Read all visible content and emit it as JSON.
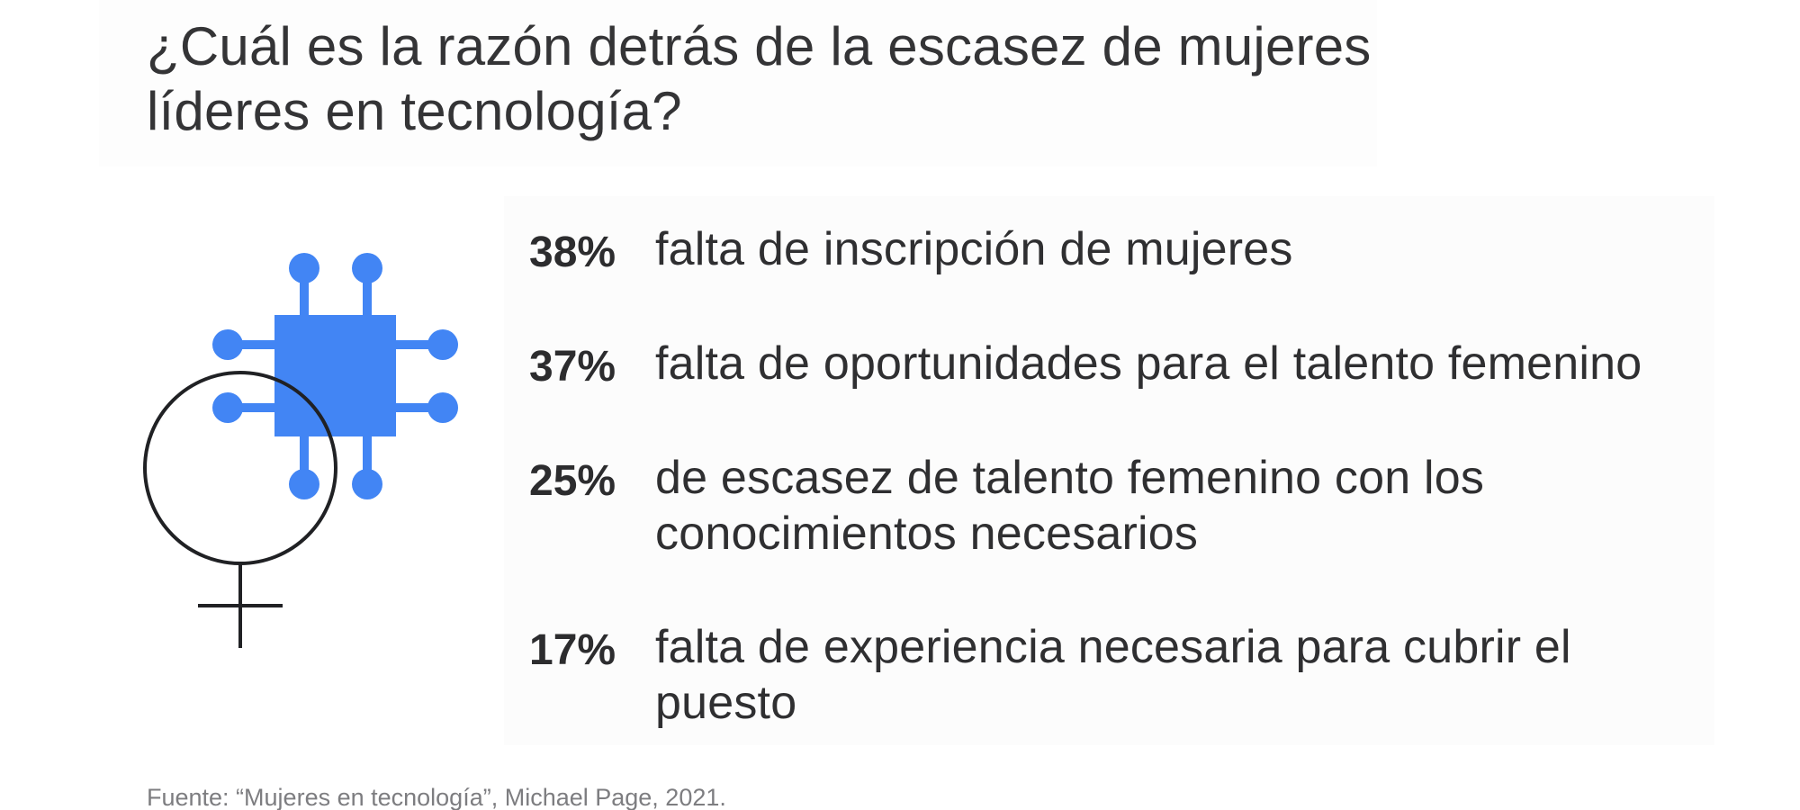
{
  "title": "¿Cuál es la razón detrás de la escasez de mujeres líderes en tecnología?",
  "stats": [
    {
      "percent": "38%",
      "text": "falta de inscripción de mujeres"
    },
    {
      "percent": "37%",
      "text": "falta de oportunidades para el talento femenino"
    },
    {
      "percent": "25%",
      "text": "de escasez de talento femenino con los conocimientos necesarios"
    },
    {
      "percent": "17%",
      "text": "falta de experiencia necesaria para cubrir el puesto"
    }
  ],
  "source": "Fuente: “Mujeres en tecnología”, Michael Page, 2021.",
  "illustration": {
    "icon": "chip-female-symbol-icon",
    "chip_color": "#4285F4",
    "symbol_color": "#202124"
  }
}
